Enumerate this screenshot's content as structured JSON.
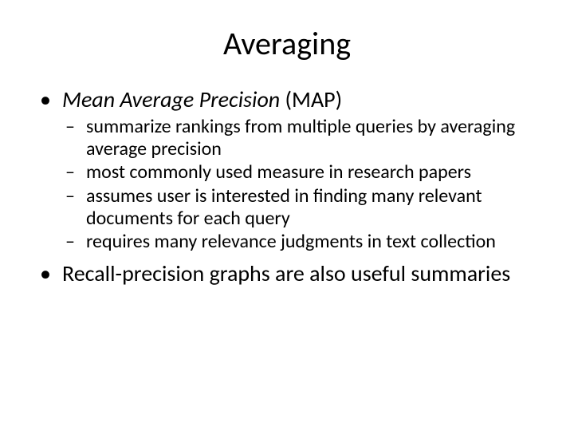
{
  "title": "Averaging",
  "bullets": [
    {
      "prefix_italic": "Mean Average Precision",
      "suffix": " (MAP)",
      "sub": [
        "summarize rankings from multiple queries by averaging average precision",
        "most commonly used measure in research papers",
        "assumes user is interested in finding many relevant documents for each query",
        "requires many relevance judgments in text collection"
      ]
    },
    {
      "text": "Recall-precision graphs are also useful summaries",
      "sub": []
    }
  ]
}
